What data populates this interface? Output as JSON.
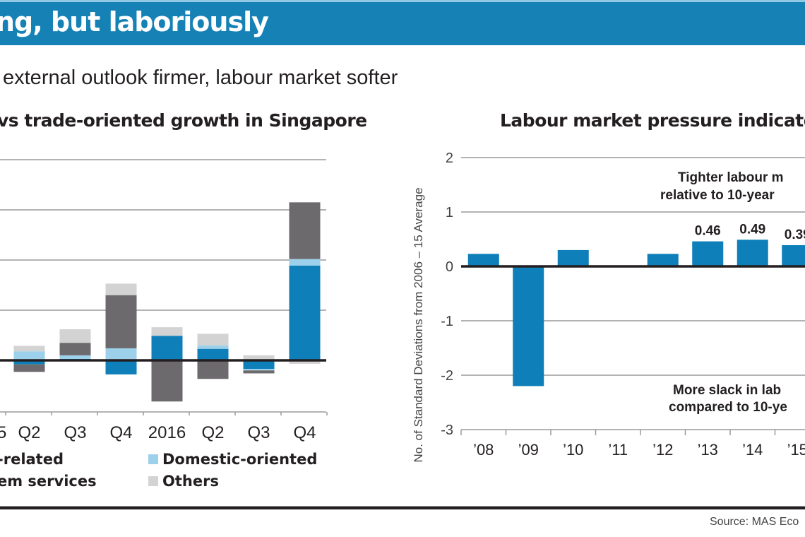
{
  "header": {
    "title": "ng, but laboriously",
    "subtitle": "external outlook firmer, labour market softer"
  },
  "colors": {
    "banner": "#1681b5",
    "trade_related": "#0e7fb8",
    "modern_services": "#6d6a6d",
    "domestic_oriented": "#9dd0ea",
    "others": "#d3d3d3",
    "axis": "#231f20",
    "grid": "#9a9a9a"
  },
  "chart_data": [
    {
      "type": "bar",
      "stacked": true,
      "title": "vs trade-oriented growth in Singapore",
      "xlabel": "",
      "ylabel": "",
      "y_unit_note": "values in gridline units (axis labels cropped)",
      "ylim": [
        -1,
        4
      ],
      "gridlines": [
        1,
        2,
        3,
        4
      ],
      "grid": true,
      "categories": [
        "Q2",
        "Q3",
        "Q4",
        "2016",
        "Q2",
        "Q3",
        "Q4"
      ],
      "partial_first_tick_label": "5",
      "series": [
        {
          "name": "Trade-related",
          "legend_label": "-related",
          "color_key": "trade_related",
          "values": [
            -0.08,
            0.03,
            -0.28,
            0.49,
            0.23,
            -0.17,
            1.89
          ]
        },
        {
          "name": "Domestic-oriented",
          "legend_label": "Domestic-oriented",
          "color_key": "domestic_oriented",
          "values": [
            0.18,
            0.07,
            0.24,
            0.0,
            0.07,
            -0.03,
            0.13
          ]
        },
        {
          "name": "Modern services",
          "legend_label": "em services",
          "color_key": "modern_services",
          "values": [
            -0.15,
            0.25,
            1.06,
            -0.82,
            -0.37,
            -0.06,
            1.13
          ]
        },
        {
          "name": "Others",
          "legend_label": "Others",
          "color_key": "others",
          "values": [
            0.11,
            0.27,
            0.23,
            0.17,
            0.23,
            0.1,
            -0.07
          ]
        }
      ],
      "legend_position": "bottom"
    },
    {
      "type": "bar",
      "title": "Labour market pressure indicato",
      "xlabel": "",
      "ylabel": "No. of Standard Deviations from 2006 – 15 Average",
      "ylim": [
        -3,
        2
      ],
      "yticks": [
        "2",
        "1",
        "0",
        "-1",
        "-2",
        "-3"
      ],
      "grid": true,
      "categories": [
        "’08",
        "’09",
        "’10",
        "’11",
        "’12",
        "’13",
        "’14",
        "’15"
      ],
      "values": [
        0.23,
        -2.2,
        0.3,
        0.0,
        0.23,
        0.46,
        0.49,
        0.39
      ],
      "data_labels": [
        "",
        "",
        "",
        "",
        "",
        "0.46",
        "0.49",
        "0.39"
      ],
      "annotations": [
        {
          "text_line1": "Tighter labour m",
          "text_line2": "relative to 10-year",
          "position": "upper-right"
        },
        {
          "text_line1": "More slack in lab",
          "text_line2": "compared to 10-ye",
          "position": "lower-right"
        }
      ]
    }
  ],
  "footer": {
    "source": "Source: MAS Eco"
  }
}
